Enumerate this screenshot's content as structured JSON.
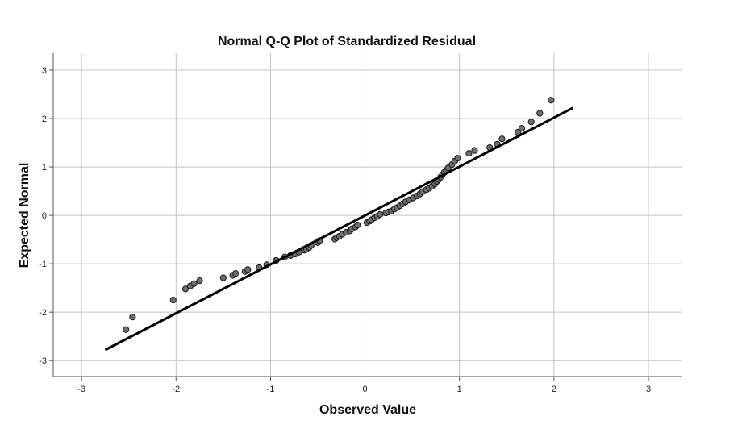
{
  "chart_data": {
    "type": "scatter",
    "title": "Normal Q-Q Plot of Standardized Residual",
    "xlabel": "Observed Value",
    "ylabel": "Expected Normal",
    "xlim": [
      -3.3,
      3.35
    ],
    "ylim": [
      -3.33,
      3.35
    ],
    "x_ticks": [
      -3,
      -2,
      -1,
      0,
      1,
      2,
      3
    ],
    "y_ticks": [
      -3,
      -2,
      -1,
      0,
      1,
      2,
      3
    ],
    "x_tick_labels": [
      "-3",
      "-2",
      "-1",
      "0",
      "1",
      "2",
      "3"
    ],
    "y_tick_labels": [
      "-3",
      "-2",
      "-1",
      "0",
      "1",
      "2",
      "3"
    ],
    "grid": true,
    "reference_line": {
      "x": [
        -2.75,
        2.2
      ],
      "y": [
        -2.78,
        2.22
      ]
    },
    "colors": {
      "points": "#6e6e6e",
      "point_stroke": "#1a1a1a",
      "line": "#000000",
      "grid": "#c4c4c4"
    },
    "series": [
      {
        "points": [
          [
            -2.53,
            -2.36
          ],
          [
            -2.46,
            -2.1
          ],
          [
            -2.03,
            -1.75
          ],
          [
            -1.9,
            -1.52
          ],
          [
            -1.85,
            -1.46
          ],
          [
            -1.81,
            -1.41
          ],
          [
            -1.75,
            -1.35
          ],
          [
            -1.5,
            -1.29
          ],
          [
            -1.4,
            -1.24
          ],
          [
            -1.37,
            -1.2
          ],
          [
            -1.27,
            -1.16
          ],
          [
            -1.24,
            -1.12
          ],
          [
            -1.12,
            -1.08
          ],
          [
            -1.04,
            -1.02
          ],
          [
            -0.94,
            -0.93
          ],
          [
            -0.85,
            -0.86
          ],
          [
            -0.79,
            -0.83
          ],
          [
            -0.74,
            -0.8
          ],
          [
            -0.7,
            -0.76
          ],
          [
            -0.64,
            -0.72
          ],
          [
            -0.62,
            -0.7
          ],
          [
            -0.59,
            -0.66
          ],
          [
            -0.57,
            -0.62
          ],
          [
            -0.5,
            -0.56
          ],
          [
            -0.48,
            -0.52
          ],
          [
            -0.32,
            -0.49
          ],
          [
            -0.3,
            -0.46
          ],
          [
            -0.27,
            -0.43
          ],
          [
            -0.24,
            -0.39
          ],
          [
            -0.2,
            -0.35
          ],
          [
            -0.16,
            -0.32
          ],
          [
            -0.14,
            -0.28
          ],
          [
            -0.1,
            -0.24
          ],
          [
            -0.08,
            -0.2
          ],
          [
            0.02,
            -0.15
          ],
          [
            0.05,
            -0.12
          ],
          [
            0.07,
            -0.09
          ],
          [
            0.1,
            -0.05
          ],
          [
            0.13,
            -0.02
          ],
          [
            0.16,
            0.02
          ],
          [
            0.22,
            0.05
          ],
          [
            0.25,
            0.07
          ],
          [
            0.28,
            0.09
          ],
          [
            0.31,
            0.13
          ],
          [
            0.34,
            0.16
          ],
          [
            0.37,
            0.2
          ],
          [
            0.4,
            0.24
          ],
          [
            0.43,
            0.28
          ],
          [
            0.47,
            0.32
          ],
          [
            0.51,
            0.36
          ],
          [
            0.55,
            0.4
          ],
          [
            0.58,
            0.44
          ],
          [
            0.61,
            0.49
          ],
          [
            0.65,
            0.53
          ],
          [
            0.68,
            0.56
          ],
          [
            0.71,
            0.6
          ],
          [
            0.74,
            0.65
          ],
          [
            0.76,
            0.7
          ],
          [
            0.78,
            0.74
          ],
          [
            0.8,
            0.79
          ],
          [
            0.82,
            0.84
          ],
          [
            0.84,
            0.89
          ],
          [
            0.86,
            0.93
          ],
          [
            0.88,
            0.98
          ],
          [
            0.92,
            1.05
          ],
          [
            0.95,
            1.12
          ],
          [
            0.98,
            1.18
          ],
          [
            1.1,
            1.28
          ],
          [
            1.16,
            1.34
          ],
          [
            1.32,
            1.4
          ],
          [
            1.4,
            1.47
          ],
          [
            1.45,
            1.58
          ],
          [
            1.62,
            1.72
          ],
          [
            1.66,
            1.8
          ],
          [
            1.76,
            1.93
          ],
          [
            1.85,
            2.11
          ],
          [
            1.97,
            2.38
          ]
        ]
      }
    ]
  }
}
